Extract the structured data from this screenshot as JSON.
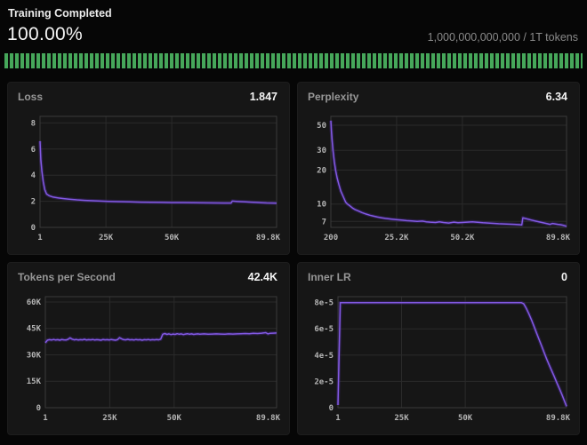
{
  "header": {
    "status": "Training Completed",
    "percent": "100.00%",
    "tokens_label": "1,000,000,000,000 / 1T tokens"
  },
  "progress": {
    "percent": 100
  },
  "colors": {
    "green": "#46a75a",
    "line": "#8259e3",
    "line_glow": "#43297f",
    "panel_bg": "#161616",
    "page_bg": "#060606"
  },
  "chart_data": [
    {
      "type": "line",
      "title": "Loss",
      "value": "1.847",
      "x": {
        "min": 1,
        "max": 89800,
        "ticks": [
          {
            "v": 1,
            "label": "1"
          },
          {
            "v": 25000,
            "label": "25K"
          },
          {
            "v": 50000,
            "label": "50K"
          },
          {
            "v": 89800,
            "label": "89.8K"
          }
        ]
      },
      "y": {
        "scale": "linear",
        "min": 0,
        "max": 8.5,
        "ticks": [
          {
            "v": 0,
            "label": "0"
          },
          {
            "v": 2,
            "label": "2"
          },
          {
            "v": 4,
            "label": "4"
          },
          {
            "v": 6,
            "label": "6"
          },
          {
            "v": 8,
            "label": "8"
          }
        ]
      },
      "points": [
        [
          1,
          6.6
        ],
        [
          300,
          5.2
        ],
        [
          700,
          4.3
        ],
        [
          1200,
          3.5
        ],
        [
          1800,
          2.9
        ],
        [
          2500,
          2.55
        ],
        [
          3500,
          2.42
        ],
        [
          5000,
          2.32
        ],
        [
          7000,
          2.25
        ],
        [
          9000,
          2.2
        ],
        [
          11000,
          2.16
        ],
        [
          14000,
          2.11
        ],
        [
          17000,
          2.07
        ],
        [
          20000,
          2.04
        ],
        [
          23000,
          2.01
        ],
        [
          26000,
          1.99
        ],
        [
          30000,
          1.97
        ],
        [
          34000,
          1.95
        ],
        [
          38000,
          1.93
        ],
        [
          42000,
          1.92
        ],
        [
          46000,
          1.91
        ],
        [
          50000,
          1.9
        ],
        [
          54000,
          1.9
        ],
        [
          58000,
          1.89
        ],
        [
          62000,
          1.88
        ],
        [
          66000,
          1.87
        ],
        [
          70000,
          1.86
        ],
        [
          72500,
          1.86
        ],
        [
          73000,
          2.01
        ],
        [
          74500,
          1.99
        ],
        [
          76000,
          1.97
        ],
        [
          78000,
          1.95
        ],
        [
          80000,
          1.93
        ],
        [
          82000,
          1.91
        ],
        [
          84000,
          1.89
        ],
        [
          86000,
          1.87
        ],
        [
          88000,
          1.86
        ],
        [
          89800,
          1.85
        ]
      ]
    },
    {
      "type": "line",
      "title": "Perplexity",
      "value": "6.34",
      "x": {
        "min": 200,
        "max": 89800,
        "ticks": [
          {
            "v": 200,
            "label": "200"
          },
          {
            "v": 25200,
            "label": "25.2K"
          },
          {
            "v": 50200,
            "label": "50.2K"
          },
          {
            "v": 89800,
            "label": "89.8K"
          }
        ]
      },
      "y": {
        "scale": "log",
        "min": 6.2,
        "max": 60,
        "ticks": [
          {
            "v": 7,
            "label": "7"
          },
          {
            "v": 10,
            "label": "10"
          },
          {
            "v": 20,
            "label": "20"
          },
          {
            "v": 30,
            "label": "30"
          },
          {
            "v": 50,
            "label": "50"
          }
        ]
      },
      "points": [
        [
          200,
          55
        ],
        [
          400,
          45
        ],
        [
          700,
          36
        ],
        [
          1000,
          30
        ],
        [
          1500,
          24
        ],
        [
          2000,
          20
        ],
        [
          2600,
          17
        ],
        [
          3200,
          15
        ],
        [
          4000,
          13
        ],
        [
          5000,
          11.5
        ],
        [
          5800,
          10.4
        ],
        [
          6500,
          10.0
        ],
        [
          7500,
          9.6
        ],
        [
          8500,
          9.2
        ],
        [
          9500,
          8.9
        ],
        [
          10500,
          8.7
        ],
        [
          12000,
          8.4
        ],
        [
          13500,
          8.15
        ],
        [
          15000,
          7.95
        ],
        [
          16500,
          7.8
        ],
        [
          18000,
          7.65
        ],
        [
          19500,
          7.55
        ],
        [
          21000,
          7.45
        ],
        [
          23000,
          7.35
        ],
        [
          25000,
          7.28
        ],
        [
          27000,
          7.2
        ],
        [
          29000,
          7.12
        ],
        [
          31000,
          7.06
        ],
        [
          33000,
          7.0
        ],
        [
          35000,
          7.05
        ],
        [
          36500,
          6.95
        ],
        [
          38000,
          6.9
        ],
        [
          40000,
          6.85
        ],
        [
          41500,
          6.95
        ],
        [
          43000,
          6.85
        ],
        [
          45000,
          6.78
        ],
        [
          47000,
          6.9
        ],
        [
          48500,
          6.82
        ],
        [
          50000,
          6.85
        ],
        [
          52000,
          6.9
        ],
        [
          54000,
          6.95
        ],
        [
          56000,
          6.88
        ],
        [
          58000,
          6.82
        ],
        [
          60000,
          6.78
        ],
        [
          62000,
          6.73
        ],
        [
          64000,
          6.68
        ],
        [
          66000,
          6.65
        ],
        [
          68000,
          6.62
        ],
        [
          70000,
          6.6
        ],
        [
          72000,
          6.55
        ],
        [
          72800,
          6.52
        ],
        [
          73200,
          7.55
        ],
        [
          74000,
          7.45
        ],
        [
          75000,
          7.35
        ],
        [
          76500,
          7.2
        ],
        [
          78000,
          7.05
        ],
        [
          79500,
          6.92
        ],
        [
          81000,
          6.8
        ],
        [
          82500,
          6.68
        ],
        [
          83500,
          6.6
        ],
        [
          84500,
          6.72
        ],
        [
          85500,
          6.65
        ],
        [
          86500,
          6.6
        ],
        [
          87500,
          6.55
        ],
        [
          88500,
          6.48
        ],
        [
          89800,
          6.34
        ]
      ]
    },
    {
      "type": "line",
      "title": "Tokens per Second",
      "value": "42.4K",
      "x": {
        "min": 1,
        "max": 89800,
        "ticks": [
          {
            "v": 1,
            "label": "1"
          },
          {
            "v": 25000,
            "label": "25K"
          },
          {
            "v": 50000,
            "label": "50K"
          },
          {
            "v": 89800,
            "label": "89.8K"
          }
        ]
      },
      "y": {
        "scale": "linear",
        "min": 0,
        "max": 63000,
        "ticks": [
          {
            "v": 0,
            "label": "0"
          },
          {
            "v": 15000,
            "label": "15K"
          },
          {
            "v": 30000,
            "label": "30K"
          },
          {
            "v": 45000,
            "label": "45K"
          },
          {
            "v": 60000,
            "label": "60K"
          }
        ]
      },
      "points": [
        [
          1,
          36800
        ],
        [
          800,
          38300
        ],
        [
          1600,
          38600
        ],
        [
          2400,
          38400
        ],
        [
          3200,
          38700
        ],
        [
          4000,
          38400
        ],
        [
          4800,
          38600
        ],
        [
          5600,
          38300
        ],
        [
          6400,
          38700
        ],
        [
          7200,
          38500
        ],
        [
          8000,
          38400
        ],
        [
          8800,
          38800
        ],
        [
          9600,
          39600
        ],
        [
          10400,
          38900
        ],
        [
          11200,
          38500
        ],
        [
          12000,
          38700
        ],
        [
          12800,
          38400
        ],
        [
          13600,
          38600
        ],
        [
          14400,
          38500
        ],
        [
          15200,
          38800
        ],
        [
          16000,
          38400
        ],
        [
          16800,
          38600
        ],
        [
          17600,
          38500
        ],
        [
          18400,
          38700
        ],
        [
          19200,
          38400
        ],
        [
          20000,
          38600
        ],
        [
          20800,
          38500
        ],
        [
          21600,
          38300
        ],
        [
          22400,
          38700
        ],
        [
          23200,
          38500
        ],
        [
          24000,
          38600
        ],
        [
          24800,
          38400
        ],
        [
          25600,
          38700
        ],
        [
          26400,
          38500
        ],
        [
          27200,
          38300
        ],
        [
          28000,
          38600
        ],
        [
          28800,
          39700
        ],
        [
          29600,
          39100
        ],
        [
          30400,
          38600
        ],
        [
          31200,
          38500
        ],
        [
          32000,
          38800
        ],
        [
          32800,
          38500
        ],
        [
          33600,
          38600
        ],
        [
          34400,
          38400
        ],
        [
          35200,
          38700
        ],
        [
          36000,
          38500
        ],
        [
          36800,
          38600
        ],
        [
          37600,
          38300
        ],
        [
          38400,
          38600
        ],
        [
          39200,
          38500
        ],
        [
          40000,
          38700
        ],
        [
          40800,
          38400
        ],
        [
          41600,
          38600
        ],
        [
          42400,
          38500
        ],
        [
          43200,
          38700
        ],
        [
          44000,
          38500
        ],
        [
          44800,
          38900
        ],
        [
          45600,
          41700
        ],
        [
          46400,
          42100
        ],
        [
          47200,
          41600
        ],
        [
          48000,
          41900
        ],
        [
          48800,
          41500
        ],
        [
          49600,
          41800
        ],
        [
          50400,
          41600
        ],
        [
          51200,
          42000
        ],
        [
          52000,
          41700
        ],
        [
          52800,
          41900
        ],
        [
          53600,
          41500
        ],
        [
          54400,
          41800
        ],
        [
          55200,
          42000
        ],
        [
          56000,
          41700
        ],
        [
          56800,
          41900
        ],
        [
          57600,
          41600
        ],
        [
          58400,
          41800
        ],
        [
          59200,
          41900
        ],
        [
          60000,
          41700
        ],
        [
          61600,
          41900
        ],
        [
          63200,
          41700
        ],
        [
          64800,
          41800
        ],
        [
          66400,
          41900
        ],
        [
          68000,
          41800
        ],
        [
          69600,
          41700
        ],
        [
          71200,
          41900
        ],
        [
          72800,
          41800
        ],
        [
          74400,
          41900
        ],
        [
          76000,
          42000
        ],
        [
          77600,
          42100
        ],
        [
          79200,
          42000
        ],
        [
          80800,
          42200
        ],
        [
          82400,
          42100
        ],
        [
          84000,
          42300
        ],
        [
          85600,
          42600
        ],
        [
          86400,
          41900
        ],
        [
          87200,
          42200
        ],
        [
          88400,
          42300
        ],
        [
          89800,
          42400
        ]
      ]
    },
    {
      "type": "line",
      "title": "Inner LR",
      "value": "0",
      "x": {
        "min": 1,
        "max": 89800,
        "ticks": [
          {
            "v": 1,
            "label": "1"
          },
          {
            "v": 25000,
            "label": "25K"
          },
          {
            "v": 50000,
            "label": "50K"
          },
          {
            "v": 89800,
            "label": "89.8K"
          }
        ]
      },
      "y": {
        "scale": "linear",
        "min": 0,
        "max": 8.45e-05,
        "ticks": [
          {
            "v": 0,
            "label": "0"
          },
          {
            "v": 2e-05,
            "label": "2e-5"
          },
          {
            "v": 4e-05,
            "label": "4e-5"
          },
          {
            "v": 6e-05,
            "label": "6e-5"
          },
          {
            "v": 8e-05,
            "label": "8e-5"
          }
        ]
      },
      "points": [
        [
          1,
          2e-06
        ],
        [
          900,
          8e-05
        ],
        [
          72000,
          8e-05
        ],
        [
          73000,
          7.9e-05
        ],
        [
          74000,
          7.55e-05
        ],
        [
          75000,
          7.15e-05
        ],
        [
          76000,
          6.7e-05
        ],
        [
          77000,
          6.2e-05
        ],
        [
          78000,
          5.7e-05
        ],
        [
          79000,
          5.2e-05
        ],
        [
          80000,
          4.7e-05
        ],
        [
          81000,
          4.2e-05
        ],
        [
          82000,
          3.7e-05
        ],
        [
          83000,
          3.25e-05
        ],
        [
          84000,
          2.8e-05
        ],
        [
          85000,
          2.35e-05
        ],
        [
          86000,
          1.9e-05
        ],
        [
          87000,
          1.45e-05
        ],
        [
          88000,
          1e-05
        ],
        [
          89000,
          5e-06
        ],
        [
          89800,
          1e-06
        ]
      ]
    }
  ]
}
